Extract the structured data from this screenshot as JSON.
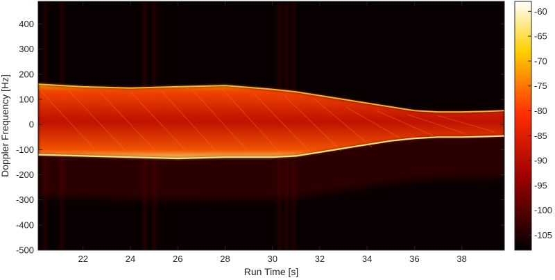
{
  "chart_data": {
    "type": "heatmap",
    "title": "",
    "xlabel": "Run Time [s]",
    "ylabel": "Doppler Frequency [Hz]",
    "xlim": [
      20.1,
      39.8
    ],
    "ylim": [
      -500,
      490
    ],
    "x_ticks": [
      22,
      24,
      26,
      28,
      30,
      32,
      34,
      36,
      38
    ],
    "y_ticks": [
      -500,
      -400,
      -300,
      -200,
      -100,
      0,
      100,
      200,
      300,
      400
    ],
    "colorbar": {
      "colormap": "hot",
      "range": [
        -108,
        -58
      ],
      "ticks": [
        -60,
        -65,
        -70,
        -75,
        -80,
        -85,
        -90,
        -95,
        -100,
        -105
      ]
    },
    "signal_band": {
      "time_s": [
        20.1,
        22,
        24,
        26,
        28,
        30,
        31,
        32,
        33,
        34,
        35,
        36,
        37,
        38,
        39,
        39.8
      ],
      "upper_hz": [
        160,
        150,
        145,
        150,
        155,
        140,
        130,
        115,
        100,
        85,
        70,
        55,
        50,
        50,
        52,
        55
      ],
      "lower_hz": [
        -120,
        -125,
        -130,
        -135,
        -130,
        -130,
        -125,
        -110,
        -95,
        -80,
        -65,
        -55,
        -50,
        -50,
        -48,
        -45
      ]
    },
    "grid": false,
    "legend": "colorbar right"
  }
}
